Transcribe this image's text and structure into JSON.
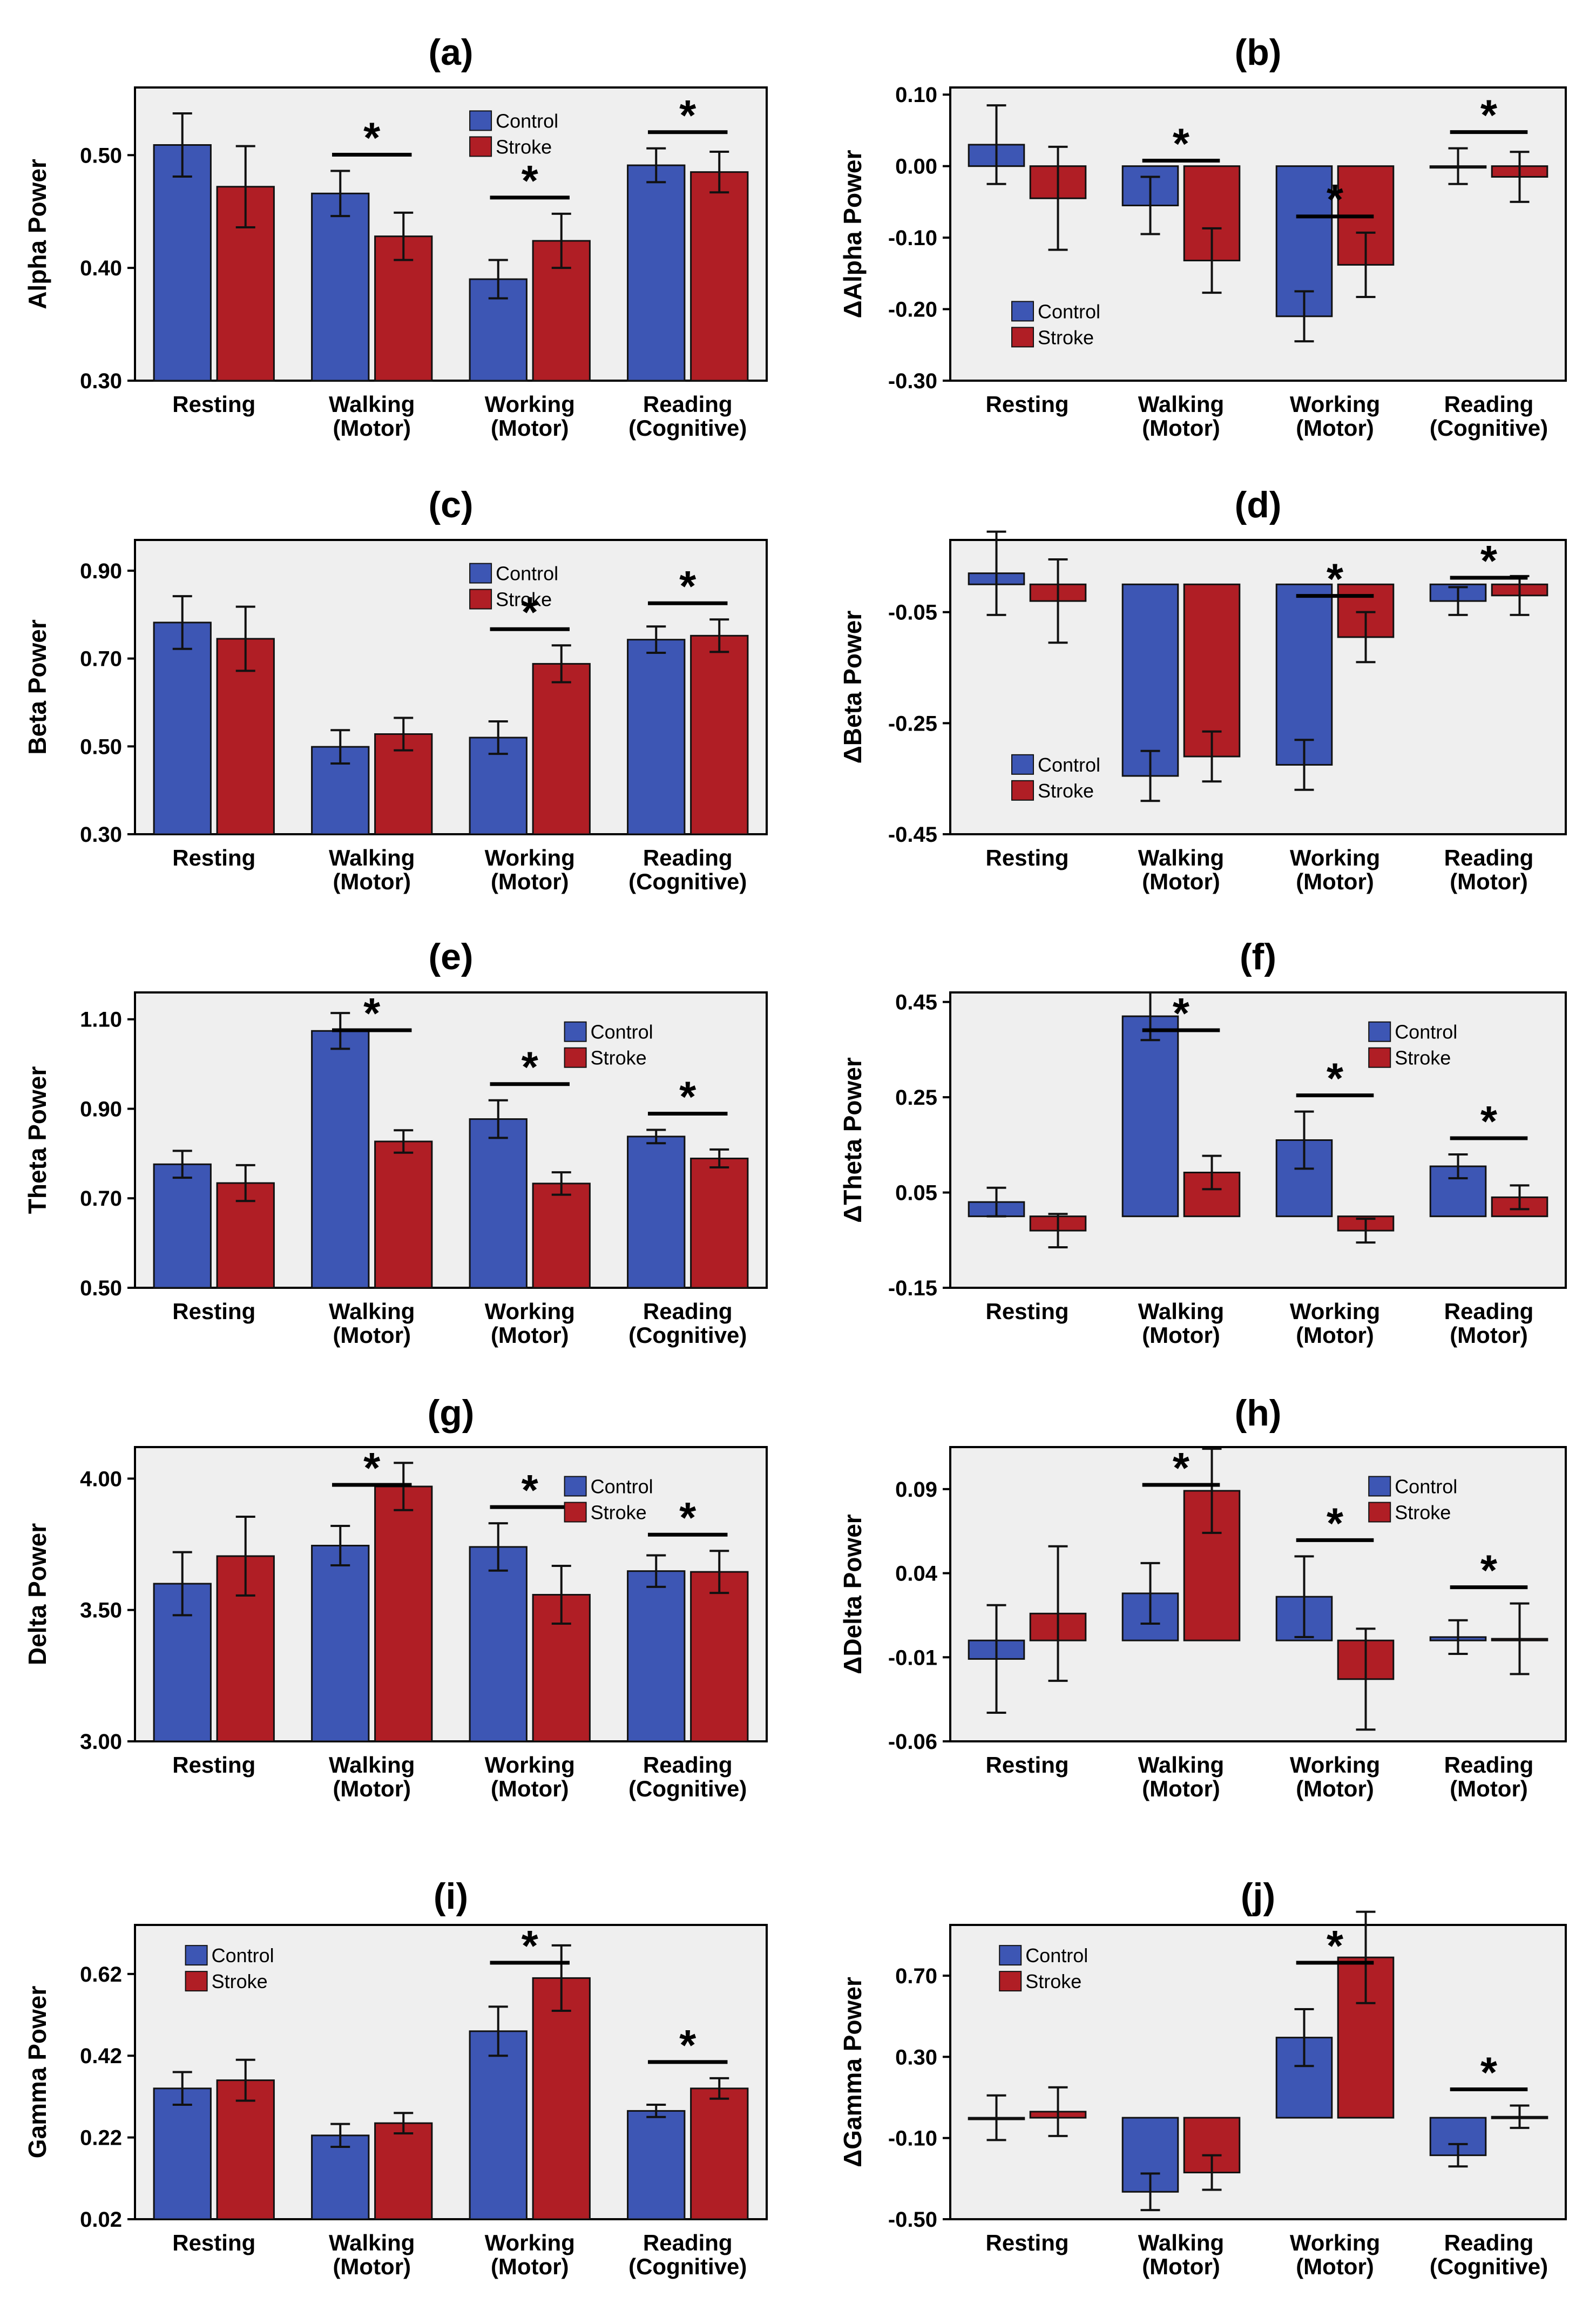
{
  "colors": {
    "control": "#3d56b4",
    "stroke": "#b01e25",
    "plot_bg": "#efefef",
    "frame": "#000000"
  },
  "chart_data": [
    {
      "id": "a",
      "panel_label": "(a)",
      "type": "bar",
      "title": "(a)",
      "ylabel": "Alpha Power",
      "categories": [
        "Resting",
        "Walking (Motor)",
        "Working (Motor)",
        "Reading (Cognitive)"
      ],
      "category_lines": [
        [
          "Resting"
        ],
        [
          "Walking",
          "(Motor)"
        ],
        [
          "Working",
          "(Motor)"
        ],
        [
          "Reading",
          "(Cognitive)"
        ]
      ],
      "ylim": [
        0.3,
        0.56
      ],
      "ylim_axis": [
        0.3,
        0.56
      ],
      "yticks": [
        0.3,
        0.4,
        0.5
      ],
      "ytick_labels": [
        "0.30",
        "0.40",
        "0.50"
      ],
      "series": [
        {
          "name": "Control",
          "values": [
            0.509,
            0.466,
            0.39,
            0.491
          ],
          "errors": [
            0.028,
            0.02,
            0.017,
            0.015
          ]
        },
        {
          "name": "Stroke",
          "values": [
            0.472,
            0.428,
            0.424,
            0.485
          ],
          "errors": [
            0.036,
            0.021,
            0.024,
            0.018
          ]
        }
      ],
      "legend": {
        "entries": [
          "Control",
          "Stroke"
        ],
        "position": "top-center"
      },
      "significance": [
        {
          "category": 1,
          "label": "*"
        },
        {
          "category": 2,
          "label": "*"
        },
        {
          "category": 3,
          "label": "*"
        }
      ]
    },
    {
      "id": "b",
      "panel_label": "(b)",
      "type": "bar",
      "title": "(b)",
      "ylabel": "ΔAlpha Power",
      "categories": [
        "Resting",
        "Walking (Motor)",
        "Working (Motor)",
        "Reading (Cognitive)"
      ],
      "category_lines": [
        [
          "Resting"
        ],
        [
          "Walking",
          "(Motor)"
        ],
        [
          "Working",
          "(Motor)"
        ],
        [
          "Reading",
          "(Cognitive)"
        ]
      ],
      "ylim": [
        -0.3,
        0.11
      ],
      "ylim_axis": [
        -0.3,
        0.11
      ],
      "yticks": [
        -0.3,
        -0.2,
        -0.1,
        0.0,
        0.1
      ],
      "ytick_labels": [
        "-0.30",
        "-0.20",
        "-0.10",
        "0.00",
        "0.10"
      ],
      "series": [
        {
          "name": "Control",
          "values": [
            0.03,
            -0.055,
            -0.21,
            0.0
          ],
          "errors": [
            0.055,
            0.04,
            0.035,
            0.025
          ]
        },
        {
          "name": "Stroke",
          "values": [
            -0.045,
            -0.132,
            -0.138,
            -0.015
          ],
          "errors": [
            0.072,
            0.045,
            0.045,
            0.035
          ]
        }
      ],
      "legend": {
        "entries": [
          "Control",
          "Stroke"
        ],
        "position": "bottom-left"
      },
      "significance": [
        {
          "category": 1,
          "label": "*"
        },
        {
          "category": 2,
          "label": "*"
        },
        {
          "category": 3,
          "label": "*"
        }
      ]
    },
    {
      "id": "c",
      "panel_label": "(c)",
      "type": "bar",
      "title": "(c)",
      "ylabel": "Beta Power",
      "categories": [
        "Resting",
        "Walking (Motor)",
        "Working (Motor)",
        "Reading (Cognitive)"
      ],
      "category_lines": [
        [
          "Resting"
        ],
        [
          "Walking",
          "(Motor)"
        ],
        [
          "Working",
          "(Motor)"
        ],
        [
          "Reading",
          "(Cognitive)"
        ]
      ],
      "ylim": [
        0.3,
        0.97
      ],
      "ylim_axis": [
        0.3,
        0.97
      ],
      "yticks": [
        0.3,
        0.5,
        0.7,
        0.9
      ],
      "ytick_labels": [
        "0.30",
        "0.50",
        "0.70",
        "0.90"
      ],
      "series": [
        {
          "name": "Control",
          "values": [
            0.782,
            0.499,
            0.52,
            0.743
          ],
          "errors": [
            0.06,
            0.038,
            0.037,
            0.03
          ]
        },
        {
          "name": "Stroke",
          "values": [
            0.745,
            0.528,
            0.688,
            0.752
          ],
          "errors": [
            0.073,
            0.037,
            0.042,
            0.037
          ]
        }
      ],
      "legend": {
        "entries": [
          "Control",
          "Stroke"
        ],
        "position": "top-center"
      },
      "significance": [
        {
          "category": 2,
          "label": "*"
        },
        {
          "category": 3,
          "label": "*"
        }
      ]
    },
    {
      "id": "d",
      "panel_label": "(d)",
      "type": "bar",
      "title": "(d)",
      "ylabel": "ΔBeta Power",
      "categories": [
        "Resting",
        "Walking (Motor)",
        "Working (Motor)",
        "Reading (Motor)"
      ],
      "category_lines": [
        [
          "Resting"
        ],
        [
          "Walking",
          "(Motor)"
        ],
        [
          "Working",
          "(Motor)"
        ],
        [
          "Reading",
          "(Motor)"
        ]
      ],
      "ylim": [
        -0.45,
        0.08
      ],
      "ylim_axis": [
        -0.45,
        0.08
      ],
      "yticks": [
        -0.45,
        -0.25,
        -0.05
      ],
      "ytick_labels": [
        "-0.45",
        "-0.25",
        "-0.05"
      ],
      "baseline": 0.0,
      "series": [
        {
          "name": "Control",
          "values": [
            0.02,
            -0.345,
            -0.325,
            -0.03
          ],
          "errors": [
            0.075,
            0.045,
            0.045,
            0.025
          ]
        },
        {
          "name": "Stroke",
          "values": [
            -0.03,
            -0.31,
            -0.095,
            -0.02
          ],
          "errors": [
            0.075,
            0.045,
            0.045,
            0.035
          ]
        }
      ],
      "legend": {
        "entries": [
          "Control",
          "Stroke"
        ],
        "position": "bottom-left"
      },
      "significance": [
        {
          "category": 2,
          "label": "*"
        },
        {
          "category": 3,
          "label": "*"
        }
      ]
    },
    {
      "id": "e",
      "panel_label": "(e)",
      "type": "bar",
      "title": "(e)",
      "ylabel": "Theta Power",
      "categories": [
        "Resting",
        "Walking (Motor)",
        "Working (Motor)",
        "Reading (Cognitive)"
      ],
      "category_lines": [
        [
          "Resting"
        ],
        [
          "Walking",
          "(Motor)"
        ],
        [
          "Working",
          "(Motor)"
        ],
        [
          "Reading",
          "(Cognitive)"
        ]
      ],
      "ylim": [
        0.5,
        1.16
      ],
      "ylim_axis": [
        0.5,
        1.16
      ],
      "yticks": [
        0.5,
        0.7,
        0.9,
        1.1
      ],
      "ytick_labels": [
        "0.50",
        "0.70",
        "0.90",
        "1.10"
      ],
      "series": [
        {
          "name": "Control",
          "values": [
            0.776,
            1.074,
            0.877,
            0.838
          ],
          "errors": [
            0.03,
            0.04,
            0.042,
            0.015
          ]
        },
        {
          "name": "Stroke",
          "values": [
            0.734,
            0.827,
            0.733,
            0.789
          ],
          "errors": [
            0.04,
            0.025,
            0.025,
            0.02
          ]
        }
      ],
      "legend": {
        "entries": [
          "Control",
          "Stroke"
        ],
        "position": "top-right"
      },
      "significance": [
        {
          "category": 1,
          "label": "*"
        },
        {
          "category": 2,
          "label": "*"
        },
        {
          "category": 3,
          "label": "*"
        }
      ]
    },
    {
      "id": "f",
      "panel_label": "(f)",
      "type": "bar",
      "title": "(f)",
      "ylabel": "ΔTheta Power",
      "categories": [
        "Resting",
        "Walking (Motor)",
        "Working (Motor)",
        "Reading (Motor)"
      ],
      "category_lines": [
        [
          "Resting"
        ],
        [
          "Walking",
          "(Motor)"
        ],
        [
          "Working",
          "(Motor)"
        ],
        [
          "Reading",
          "(Motor)"
        ]
      ],
      "ylim": [
        -0.15,
        0.47
      ],
      "ylim_axis": [
        -0.15,
        0.47
      ],
      "yticks": [
        -0.15,
        0.05,
        0.25,
        0.45
      ],
      "ytick_labels": [
        "-0.15",
        "0.05",
        "0.25",
        "0.45"
      ],
      "series": [
        {
          "name": "Control",
          "values": [
            0.03,
            0.42,
            0.16,
            0.105
          ],
          "errors": [
            0.03,
            0.05,
            0.06,
            0.025
          ]
        },
        {
          "name": "Stroke",
          "values": [
            -0.03,
            0.092,
            -0.03,
            0.04
          ],
          "errors": [
            0.035,
            0.035,
            0.025,
            0.025
          ]
        }
      ],
      "legend": {
        "entries": [
          "Control",
          "Stroke"
        ],
        "position": "top-right"
      },
      "significance": [
        {
          "category": 1,
          "label": "*"
        },
        {
          "category": 2,
          "label": "*"
        },
        {
          "category": 3,
          "label": "*"
        }
      ]
    },
    {
      "id": "g",
      "panel_label": "(g)",
      "type": "bar",
      "title": "(g)",
      "ylabel": "Delta Power",
      "categories": [
        "Resting",
        "Walking (Motor)",
        "Working (Motor)",
        "Reading (Cognitive)"
      ],
      "category_lines": [
        [
          "Resting"
        ],
        [
          "Walking",
          "(Motor)"
        ],
        [
          "Working",
          "(Motor)"
        ],
        [
          "Reading",
          "(Cognitive)"
        ]
      ],
      "ylim": [
        3.0,
        4.12
      ],
      "ylim_axis": [
        3.0,
        4.12
      ],
      "yticks": [
        3.0,
        3.5,
        4.0
      ],
      "ytick_labels": [
        "3.00",
        "3.50",
        "4.00"
      ],
      "series": [
        {
          "name": "Control",
          "values": [
            3.6,
            3.745,
            3.74,
            3.648
          ],
          "errors": [
            0.12,
            0.075,
            0.09,
            0.06
          ]
        },
        {
          "name": "Stroke",
          "values": [
            3.705,
            3.97,
            3.558,
            3.645
          ],
          "errors": [
            0.15,
            0.09,
            0.11,
            0.08
          ]
        }
      ],
      "legend": {
        "entries": [
          "Control",
          "Stroke"
        ],
        "position": "top-right"
      },
      "significance": [
        {
          "category": 1,
          "label": "*"
        },
        {
          "category": 2,
          "label": "*"
        },
        {
          "category": 3,
          "label": "*"
        }
      ]
    },
    {
      "id": "h",
      "panel_label": "(h)",
      "type": "bar",
      "title": "(h)",
      "ylabel": "ΔDelta Power",
      "categories": [
        "Resting",
        "Walking (Motor)",
        "Working (Motor)",
        "Reading (Motor)"
      ],
      "category_lines": [
        [
          "Resting"
        ],
        [
          "Walking",
          "(Motor)"
        ],
        [
          "Working",
          "(Motor)"
        ],
        [
          "Reading",
          "(Motor)"
        ]
      ],
      "ylim": [
        -0.06,
        0.115
      ],
      "ylim_axis": [
        -0.06,
        0.115
      ],
      "yticks": [
        -0.06,
        -0.01,
        0.04,
        0.09
      ],
      "ytick_labels": [
        "-0.06",
        "-0.01",
        "0.04",
        "0.09"
      ],
      "baseline": 0.0,
      "series": [
        {
          "name": "Control",
          "values": [
            -0.011,
            0.028,
            0.026,
            0.002
          ],
          "errors": [
            0.032,
            0.018,
            0.024,
            0.01
          ]
        },
        {
          "name": "Stroke",
          "values": [
            0.016,
            0.089,
            -0.023,
            0.001
          ],
          "errors": [
            0.04,
            0.025,
            0.03,
            0.021
          ]
        }
      ],
      "legend": {
        "entries": [
          "Control",
          "Stroke"
        ],
        "position": "top-right"
      },
      "significance": [
        {
          "category": 1,
          "label": "*"
        },
        {
          "category": 2,
          "label": "*"
        },
        {
          "category": 3,
          "label": "*"
        }
      ]
    },
    {
      "id": "i",
      "panel_label": "(i)",
      "type": "bar",
      "title": "(i)",
      "ylabel": "Gamma Power",
      "categories": [
        "Resting",
        "Walking (Motor)",
        "Working (Motor)",
        "Reading (Cognitive)"
      ],
      "category_lines": [
        [
          "Resting"
        ],
        [
          "Walking",
          "(Motor)"
        ],
        [
          "Working",
          "(Motor)"
        ],
        [
          "Reading",
          "(Cognitive)"
        ]
      ],
      "ylim": [
        0.02,
        0.74
      ],
      "ylim_axis": [
        0.02,
        0.74
      ],
      "yticks": [
        0.02,
        0.22,
        0.42,
        0.62
      ],
      "ytick_labels": [
        "0.02",
        "0.22",
        "0.42",
        "0.62"
      ],
      "series": [
        {
          "name": "Control",
          "values": [
            0.34,
            0.225,
            0.48,
            0.285
          ],
          "errors": [
            0.04,
            0.028,
            0.06,
            0.015
          ]
        },
        {
          "name": "Stroke",
          "values": [
            0.36,
            0.255,
            0.61,
            0.34
          ],
          "errors": [
            0.05,
            0.025,
            0.08,
            0.025
          ]
        }
      ],
      "legend": {
        "entries": [
          "Control",
          "Stroke"
        ],
        "position": "top-left"
      },
      "significance": [
        {
          "category": 2,
          "label": "*"
        },
        {
          "category": 3,
          "label": "*"
        }
      ]
    },
    {
      "id": "j",
      "panel_label": "(j)",
      "type": "bar",
      "title": "(j)",
      "ylabel": "ΔGamma Power",
      "categories": [
        "Resting",
        "Walking (Motor)",
        "Working (Motor)",
        "Reading (Cognitive)"
      ],
      "category_lines": [
        [
          "Resting"
        ],
        [
          "Walking",
          "(Motor)"
        ],
        [
          "Working",
          "(Motor)"
        ],
        [
          "Reading",
          "(Cognitive)"
        ]
      ],
      "ylim": [
        -0.5,
        0.95
      ],
      "ylim_axis": [
        -0.5,
        0.95
      ],
      "yticks": [
        -0.5,
        -0.1,
        0.3,
        0.7
      ],
      "ytick_labels": [
        "-0.50",
        "-0.10",
        "0.30",
        "0.70"
      ],
      "baseline": 0.0,
      "series": [
        {
          "name": "Control",
          "values": [
            0.0,
            -0.365,
            0.395,
            -0.185
          ],
          "errors": [
            0.11,
            0.09,
            0.14,
            0.055
          ]
        },
        {
          "name": "Stroke",
          "values": [
            0.03,
            -0.27,
            0.79,
            0.005
          ],
          "errors": [
            0.12,
            0.085,
            0.225,
            0.055
          ]
        }
      ],
      "legend": {
        "entries": [
          "Control",
          "Stroke"
        ],
        "position": "top-left"
      },
      "significance": [
        {
          "category": 2,
          "label": "*"
        },
        {
          "category": 3,
          "label": "*"
        }
      ]
    }
  ]
}
